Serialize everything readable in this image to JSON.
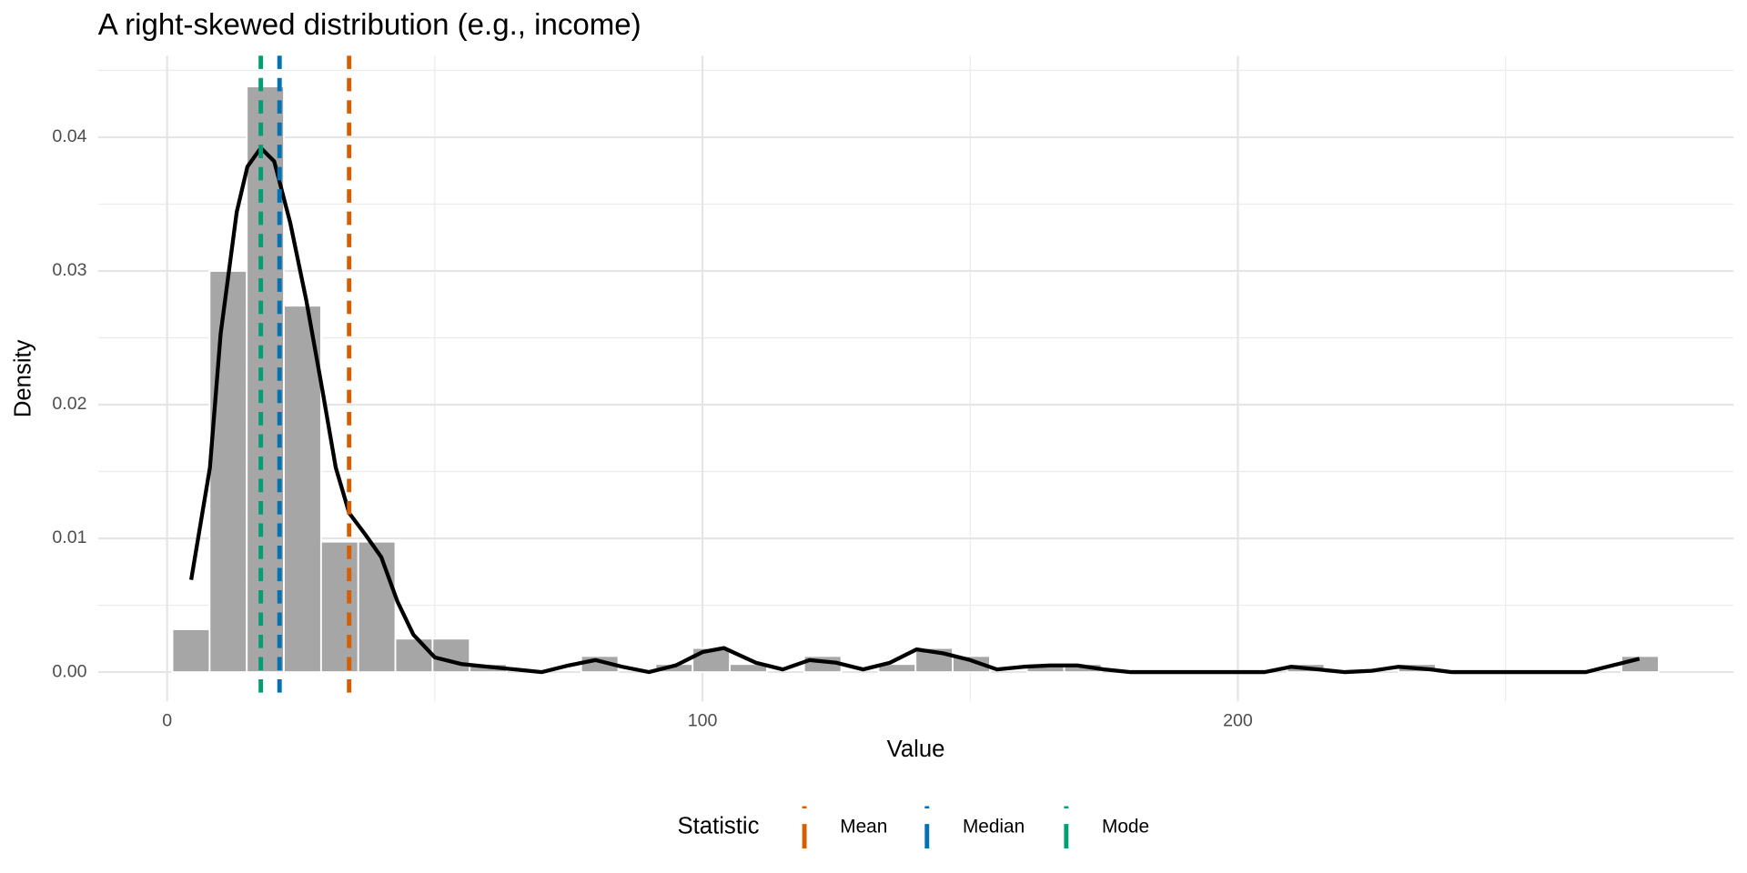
{
  "chart_data": {
    "type": "histogram",
    "title": "A right-skewed distribution (e.g., income)",
    "x_label": "Value",
    "y_label": "Density",
    "bins": [
      1.0,
      7.94,
      14.88,
      21.82,
      28.76,
      35.7,
      42.64,
      49.58,
      56.52,
      63.46,
      70.4,
      77.34,
      84.28,
      91.22,
      98.16,
      105.1,
      112.04,
      118.98,
      125.92,
      132.86,
      139.8,
      146.74,
      153.68,
      160.62,
      167.56,
      174.5,
      181.44,
      188.38,
      195.32,
      202.26,
      209.2,
      216.14,
      223.08,
      230.02,
      236.96,
      243.9,
      250.84,
      257.78,
      264.72,
      271.66,
      278.6
    ],
    "values": [
      0.0032,
      0.03,
      0.0438,
      0.0274,
      0.00975,
      0.00975,
      0.0025,
      0.0025,
      0.0006,
      0,
      0,
      0.0012,
      0,
      0.0006,
      0.0018,
      0.0006,
      0,
      0.0012,
      0,
      0.0006,
      0.0018,
      0.0012,
      0,
      0.0006,
      0.0006,
      0,
      0,
      0,
      0,
      0,
      0.0006,
      0,
      0,
      0.0006,
      0,
      0,
      0,
      0,
      0,
      0.0012
    ],
    "color": "#a6a6a6",
    "density": {
      "color": "#000000",
      "x": [
        4.5,
        8,
        10,
        13,
        15,
        17.5,
        20,
        23,
        26,
        29,
        31.5,
        34,
        37,
        40,
        43,
        46,
        50,
        55,
        60,
        65,
        70,
        75,
        80,
        85,
        90,
        95,
        100,
        104,
        110,
        115,
        120,
        125,
        130,
        135,
        140,
        145,
        150,
        155,
        160,
        165,
        170,
        175,
        180,
        190,
        200,
        205,
        210,
        215,
        220,
        225,
        230,
        236,
        240,
        250,
        260,
        265,
        270,
        275
      ],
      "y": [
        0.0069,
        0.0153,
        0.0253,
        0.0344,
        0.0378,
        0.0392,
        0.0382,
        0.0336,
        0.0278,
        0.0211,
        0.0153,
        0.0119,
        0.0103,
        0.0086,
        0.0053,
        0.0028,
        0.0011,
        0.0006,
        0.0004,
        0.0002,
        0,
        0.0005,
        0.0009,
        0.0004,
        0,
        0.0005,
        0.0015,
        0.0018,
        0.0007,
        0.0002,
        0.0009,
        0.0007,
        0.0002,
        0.0007,
        0.0017,
        0.0014,
        0.0009,
        0.0002,
        0.0004,
        0.0005,
        0.0005,
        0.0002,
        0,
        0,
        0,
        0,
        0.0004,
        0.0002,
        0,
        0.0001,
        0.0004,
        0.0002,
        0,
        0,
        0,
        0,
        0.0005,
        0.001
      ]
    },
    "legend_title": "Statistic",
    "legend_position": "bottom",
    "vlines": [
      {
        "name": "Mean",
        "value": 34.0,
        "color": "#D55E00"
      },
      {
        "name": "Median",
        "value": 21.0,
        "color": "#0072B2"
      },
      {
        "name": "Mode",
        "value": 17.5,
        "color": "#009E73"
      }
    ],
    "xlim": [
      -12.9,
      292.6
    ],
    "xticks": [
      0,
      100,
      200
    ],
    "ylim": [
      -0.0022,
      0.0461
    ],
    "yticks": [
      {
        "value": 0,
        "label": "0.00"
      },
      {
        "value": 0.01,
        "label": "0.01"
      },
      {
        "value": 0.02,
        "label": "0.02"
      },
      {
        "value": 0.03,
        "label": "0.03"
      },
      {
        "value": 0.04,
        "label": "0.04"
      }
    ],
    "grid": true
  }
}
